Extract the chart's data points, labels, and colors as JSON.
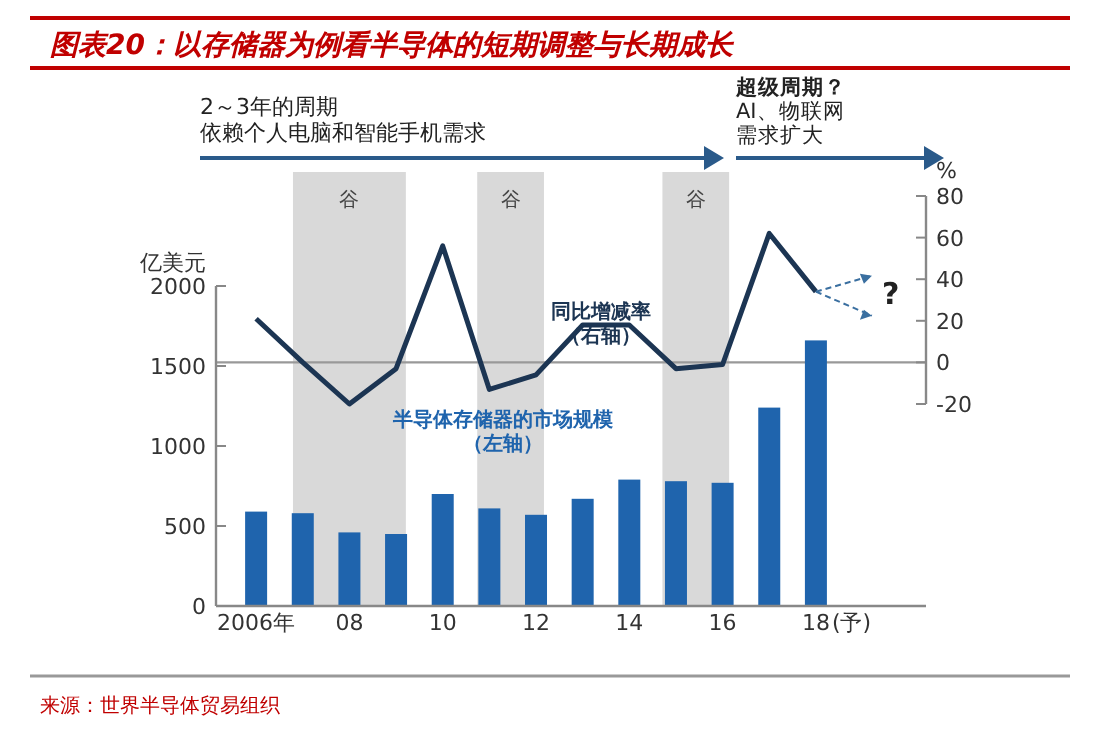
{
  "chart_data": {
    "type": "bar",
    "title": "图表20：以存储器为例看半导体的短期调整与长期成长",
    "x": [
      2006,
      2007,
      2008,
      2009,
      2010,
      2011,
      2012,
      2013,
      2014,
      2015,
      2016,
      2017,
      2018
    ],
    "xlim": [
      2005.14,
      2020.36
    ],
    "xticks": [
      {
        "value": 2006,
        "label": "2006年"
      },
      {
        "value": 2008,
        "label": "08"
      },
      {
        "value": 2010,
        "label": "10"
      },
      {
        "value": 2012,
        "label": "12"
      },
      {
        "value": 2014,
        "label": "14"
      },
      {
        "value": 2016,
        "label": "16"
      },
      {
        "value": 2018,
        "label": "18"
      }
    ],
    "ylim": [
      0,
      2000
    ],
    "yticks": [
      0,
      500,
      1000,
      1500,
      2000
    ],
    "ylabel": "亿美元",
    "y2lim": [
      -20,
      80
    ],
    "y2ticks": [
      -20,
      0,
      20,
      40,
      60,
      80
    ],
    "y2label": "%",
    "series": [
      {
        "name": "半导体存储器的市场规模（左轴）",
        "color": "#1f64ad",
        "values": [
          590,
          580,
          460,
          450,
          700,
          610,
          570,
          670,
          790,
          780,
          770,
          1240,
          1660
        ]
      },
      {
        "name": "同比增减率（右轴）",
        "type": "line",
        "axis": "y2",
        "color": "#1c3553",
        "values": [
          21,
          0,
          -20,
          -3,
          56,
          -13,
          -6,
          18,
          18,
          -3,
          -1,
          62,
          34
        ]
      }
    ],
    "bands": [
      {
        "axis": "x",
        "from": 2006.79,
        "to": 2009.21,
        "label": "谷",
        "color": "#d9d9d9"
      },
      {
        "axis": "x",
        "from": 2010.74,
        "to": 2012.17,
        "label": "谷",
        "color": "#d9d9d9"
      },
      {
        "axis": "x",
        "from": 2014.71,
        "to": 2016.14,
        "label": "谷",
        "color": "#d9d9d9"
      }
    ],
    "ref_lines": [
      {
        "axis": "y2",
        "value": 0,
        "color": "#999999"
      }
    ],
    "annotations": [
      "2～3年的周期",
      "依赖个人电脑和智能手机需求",
      "超级周期？",
      "AI、物联网",
      "需求扩大",
      "?",
      "来源：世界半导体贸易组织",
      "(予)"
    ],
    "legend": false,
    "grid": false
  }
}
